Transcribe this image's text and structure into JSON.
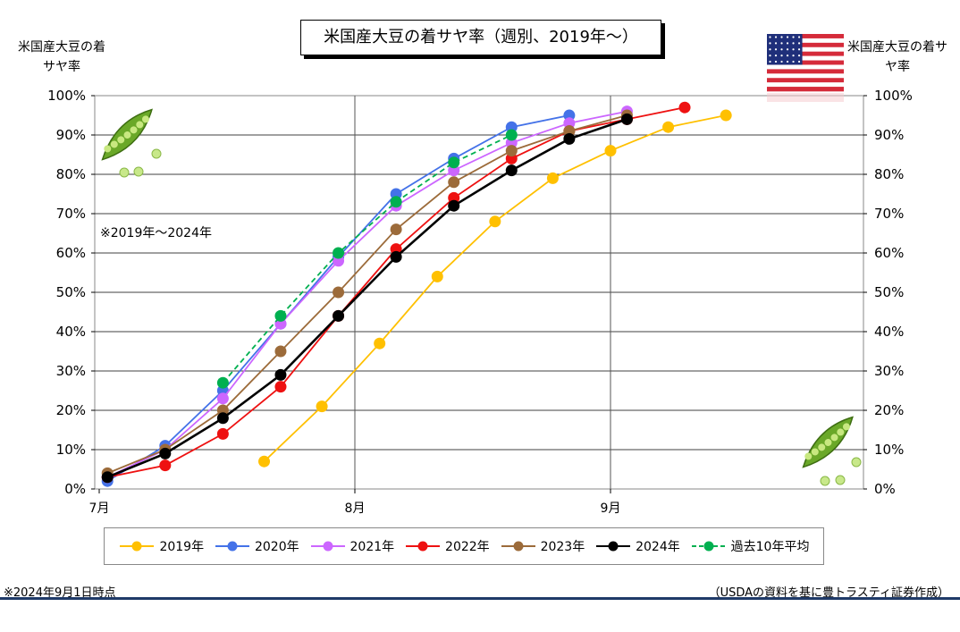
{
  "chart_data": {
    "type": "line",
    "title": "米国産大豆の着サヤ率（週別、2019年～）",
    "ylabel_left": "米国産大豆の着サヤ率",
    "ylabel_right": "米国産大豆の着サヤ率",
    "note": "※2019年～2024年",
    "x_ticks": [
      "7月",
      "8月",
      "9月"
    ],
    "y_ticks": [
      "0%",
      "10%",
      "20%",
      "30%",
      "40%",
      "50%",
      "60%",
      "70%",
      "80%",
      "90%",
      "100%"
    ],
    "ylim": [
      0,
      100
    ],
    "grid": true,
    "legend_position": "bottom",
    "series": [
      {
        "name": "2019年",
        "color": "#FFC000",
        "dash": false,
        "points": [
          [
            "07-21",
            7
          ],
          [
            "07-28",
            21
          ],
          [
            "08-04",
            37
          ],
          [
            "08-11",
            54
          ],
          [
            "08-18",
            68
          ],
          [
            "08-25",
            79
          ],
          [
            "09-01",
            86
          ],
          [
            "09-08",
            92
          ],
          [
            "09-15",
            95
          ]
        ]
      },
      {
        "name": "2020年",
        "color": "#4472E8",
        "dash": false,
        "points": [
          [
            "07-02",
            2
          ],
          [
            "07-09",
            11
          ],
          [
            "07-16",
            25
          ],
          [
            "07-23",
            42
          ],
          [
            "07-30",
            59
          ],
          [
            "08-06",
            75
          ],
          [
            "08-13",
            84
          ],
          [
            "08-20",
            92
          ],
          [
            "08-27",
            95
          ]
        ]
      },
      {
        "name": "2021年",
        "color": "#CC66FF",
        "dash": false,
        "points": [
          [
            "07-02",
            3
          ],
          [
            "07-09",
            10
          ],
          [
            "07-16",
            23
          ],
          [
            "07-23",
            42
          ],
          [
            "07-30",
            58
          ],
          [
            "08-06",
            72
          ],
          [
            "08-13",
            81
          ],
          [
            "08-20",
            88
          ],
          [
            "08-27",
            93
          ],
          [
            "09-03",
            96
          ]
        ]
      },
      {
        "name": "2022年",
        "color": "#EE1111",
        "dash": false,
        "points": [
          [
            "07-02",
            3
          ],
          [
            "07-09",
            6
          ],
          [
            "07-16",
            14
          ],
          [
            "07-23",
            26
          ],
          [
            "07-30",
            44
          ],
          [
            "08-06",
            61
          ],
          [
            "08-13",
            74
          ],
          [
            "08-20",
            84
          ],
          [
            "08-27",
            91
          ],
          [
            "09-03",
            94
          ],
          [
            "09-10",
            97
          ]
        ]
      },
      {
        "name": "2023年",
        "color": "#9C6B3A",
        "dash": false,
        "points": [
          [
            "07-02",
            4
          ],
          [
            "07-09",
            10
          ],
          [
            "07-16",
            20
          ],
          [
            "07-23",
            35
          ],
          [
            "07-30",
            50
          ],
          [
            "08-06",
            66
          ],
          [
            "08-13",
            78
          ],
          [
            "08-20",
            86
          ],
          [
            "08-27",
            91
          ],
          [
            "09-03",
            95
          ]
        ]
      },
      {
        "name": "2024年",
        "color": "#000000",
        "dash": false,
        "points": [
          [
            "07-02",
            3
          ],
          [
            "07-09",
            9
          ],
          [
            "07-16",
            18
          ],
          [
            "07-23",
            29
          ],
          [
            "07-30",
            44
          ],
          [
            "08-06",
            59
          ],
          [
            "08-13",
            72
          ],
          [
            "08-20",
            81
          ],
          [
            "08-27",
            89
          ],
          [
            "09-03",
            94
          ]
        ]
      },
      {
        "name": "過去10年平均",
        "color": "#00B050",
        "dash": true,
        "points": [
          [
            "07-16",
            27
          ],
          [
            "07-23",
            44
          ],
          [
            "07-30",
            60
          ],
          [
            "08-06",
            73
          ],
          [
            "08-13",
            83
          ],
          [
            "08-20",
            90
          ]
        ]
      }
    ]
  },
  "footer": {
    "left": "※2024年9月1日時点",
    "right": "（USDAの資料を基に豊トラスティ証券作成）"
  }
}
